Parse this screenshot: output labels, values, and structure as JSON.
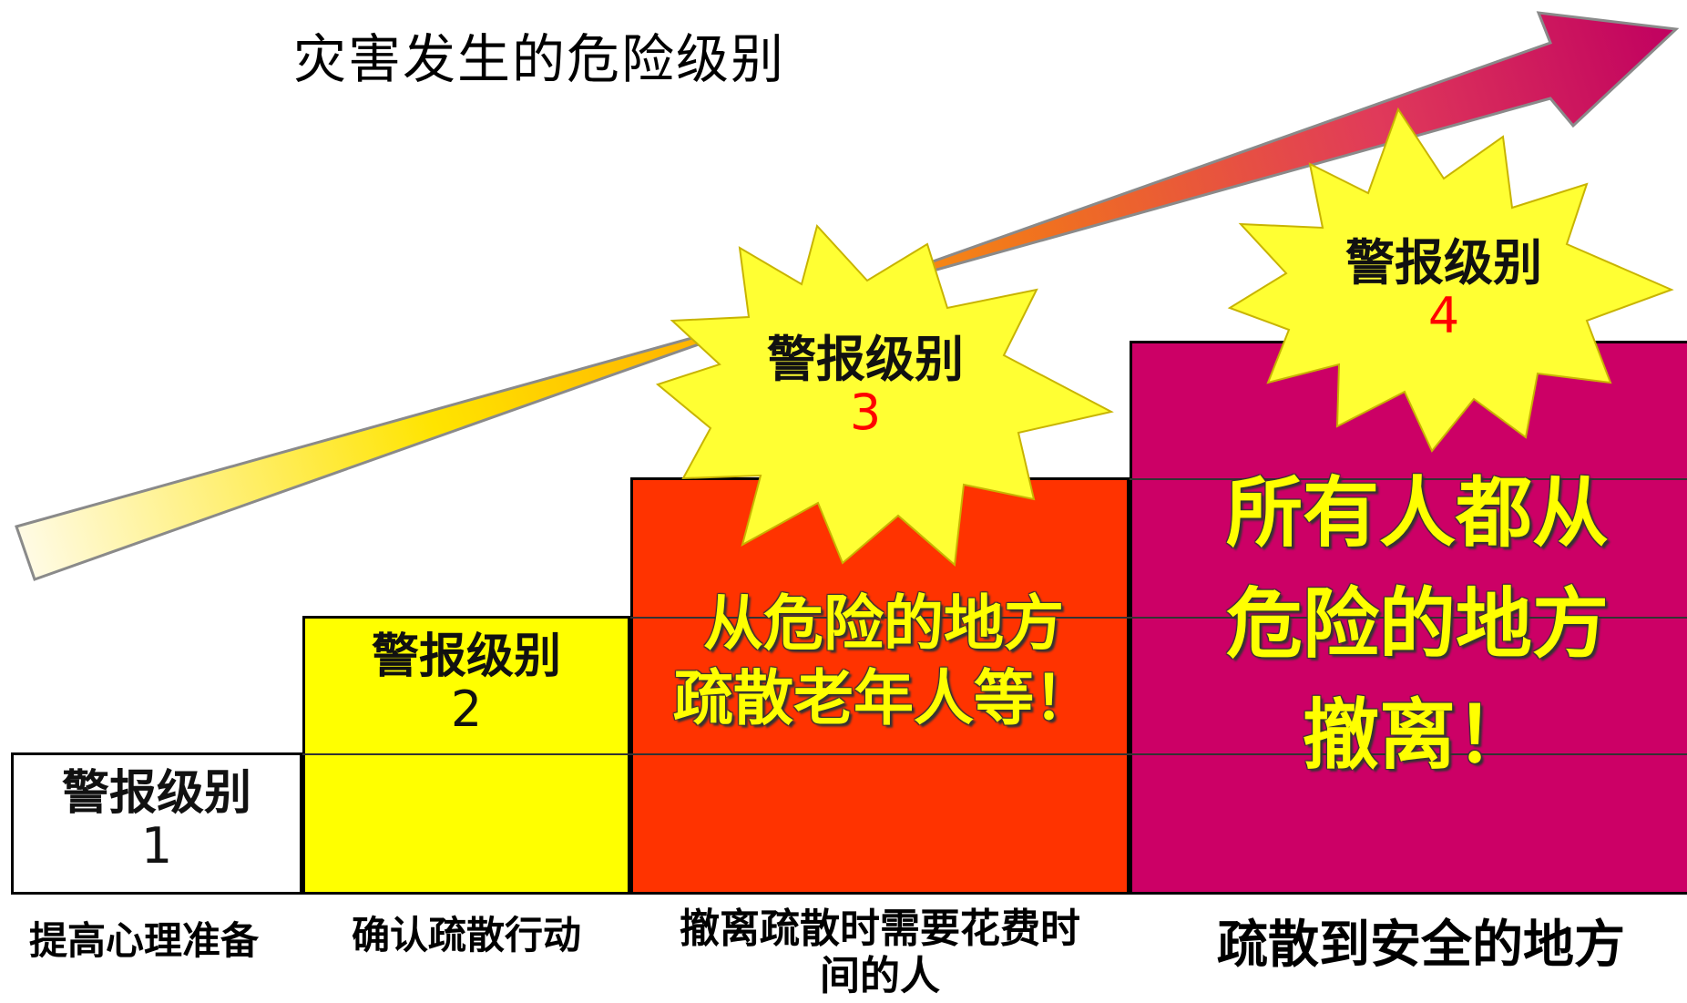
{
  "title": "灾害发生的危险级别",
  "colors": {
    "level1": "#ffffff",
    "level2": "#ffff00",
    "level3": "#ff3300",
    "level4": "#cc0066",
    "star": "#ffff33",
    "level_number_red": "#ff0000"
  },
  "levels": [
    {
      "label": "警报级别",
      "number": "1",
      "bottom": "提高心理准备"
    },
    {
      "label": "警报级别",
      "number": "2",
      "bottom": "确认疏散行动"
    },
    {
      "label": "警报级别",
      "number": "3",
      "bottom_line1": "撤离疏散时需要花费时",
      "bottom_line2": "间的人",
      "message_line1": "从危险的地方",
      "message_line2": "疏散老年人等！"
    },
    {
      "label": "警报级别",
      "number": "4",
      "bottom": "疏散到安全的地方",
      "message_line1": "所有人都从",
      "message_line2": "危险的地方",
      "message_line3": "撤离！"
    }
  ]
}
